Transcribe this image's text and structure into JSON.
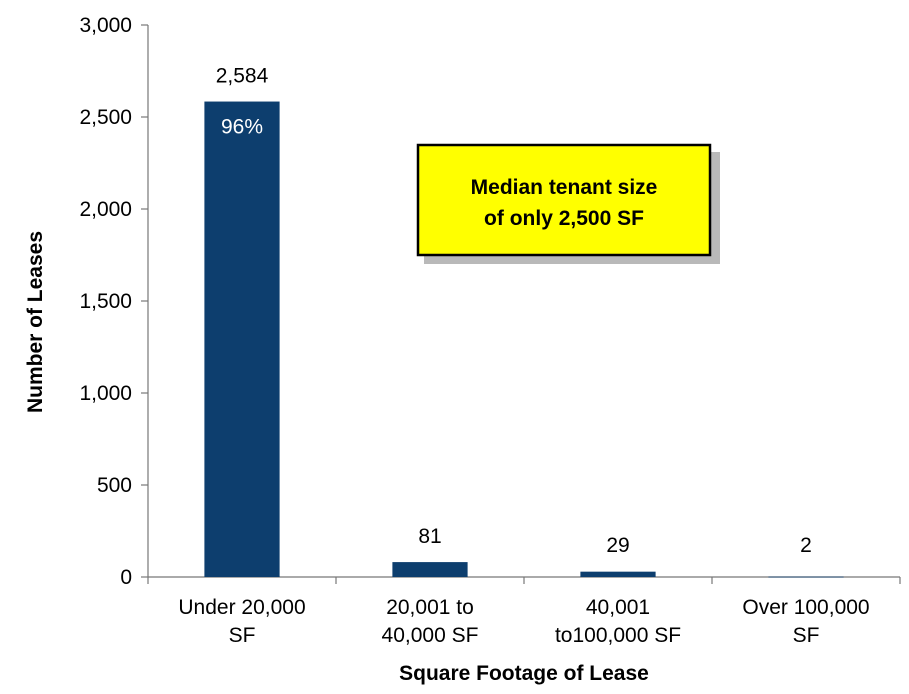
{
  "chart_data": {
    "type": "bar",
    "categories": [
      [
        "Under 20,000",
        "SF"
      ],
      [
        "20,001 to",
        "40,000 SF"
      ],
      [
        "40,001",
        "to100,000 SF"
      ],
      [
        "Over 100,000",
        "SF"
      ]
    ],
    "values": [
      2584,
      81,
      29,
      2
    ],
    "data_labels": [
      "2,584",
      "81",
      "29",
      "2"
    ],
    "inner_labels": [
      "96%",
      "",
      "",
      ""
    ],
    "ylabel": "Number of Leases",
    "xlabel": "Square Footage of Lease",
    "ylim": [
      0,
      3000
    ],
    "yticks": [
      0,
      500,
      1000,
      1500,
      2000,
      2500,
      3000
    ],
    "ytick_labels": [
      "0",
      "500",
      "1,000",
      "1,500",
      "2,000",
      "2,500",
      "3,000"
    ],
    "grid": false,
    "bar_color": "#0d3e6e",
    "annotation": {
      "lines": [
        "Median tenant size",
        "of only 2,500 SF"
      ],
      "fill": "#ffff00",
      "border": "#000000"
    }
  }
}
